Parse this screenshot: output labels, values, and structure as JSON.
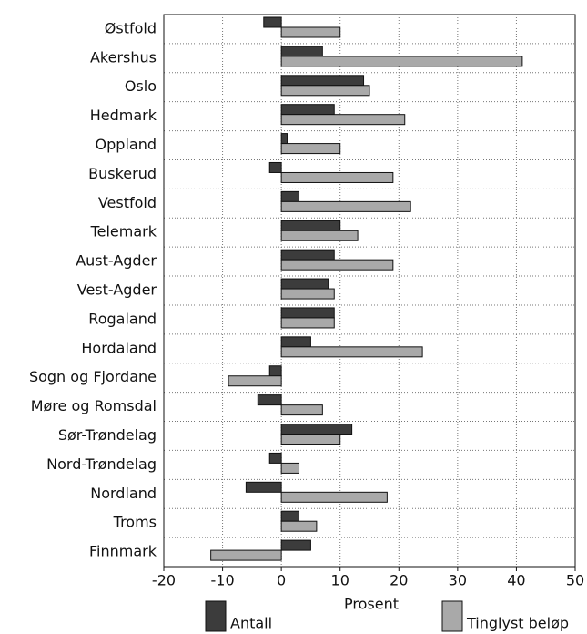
{
  "chart_data": {
    "type": "bar",
    "orientation": "horizontal",
    "x_label": "Prosent",
    "categories": [
      "Østfold",
      "Akershus",
      "Oslo",
      "Hedmark",
      "Oppland",
      "Buskerud",
      "Vestfold",
      "Telemark",
      "Aust-Agder",
      "Vest-Agder",
      "Rogaland",
      "Hordaland",
      "Sogn og Fjordane",
      "Møre og Romsdal",
      "Sør-Trøndelag",
      "Nord-Trøndelag",
      "Nordland",
      "Troms",
      "Finnmark"
    ],
    "series": [
      {
        "name": "Antall",
        "color": "#3c3c3c",
        "values": [
          -3,
          7,
          14,
          9,
          1,
          -2,
          3,
          10,
          9,
          8,
          9,
          5,
          -2,
          -4,
          12,
          -2,
          -6,
          3,
          5
        ]
      },
      {
        "name": "Tinglyst beløp",
        "color": "#a9a9a9",
        "values": [
          10,
          41,
          15,
          21,
          10,
          19,
          22,
          13,
          19,
          9,
          9,
          24,
          -9,
          7,
          10,
          3,
          18,
          6,
          -12
        ]
      }
    ],
    "xlim": [
      -20,
      50
    ],
    "xticks": [
      -20,
      -10,
      0,
      10,
      20,
      30,
      40,
      50
    ],
    "grid": true
  }
}
